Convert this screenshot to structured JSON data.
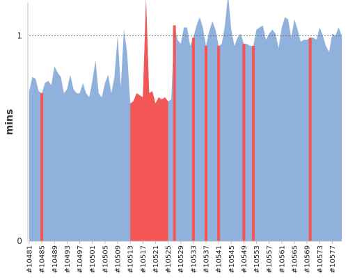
{
  "chart_data": {
    "type": "area",
    "ylabel": "mins",
    "ylim": [
      0,
      1.16
    ],
    "yticks": [
      0,
      1
    ],
    "ytick_labels": [
      "0",
      "1"
    ],
    "reference_line": 1,
    "grid": false,
    "legend": "none",
    "colors": {
      "normal": "#8fb1dc",
      "highlight": "#f25656",
      "axis": "#bbbbbb",
      "refline": "#666666"
    },
    "x_start": 10481,
    "x_end": 10580,
    "x_tick_labels": [
      "#10481",
      "#10485",
      "#10489",
      "#10493",
      "#10497",
      "#10501",
      "#10505",
      "#10509",
      "#10513",
      "#10517",
      "#10521",
      "#10525",
      "#10529",
      "#10533",
      "#10537",
      "#10541",
      "#10545",
      "#10549",
      "#10553",
      "#10557",
      "#10561",
      "#10565",
      "#10569",
      "#10573",
      "#10577"
    ],
    "values": [
      0.73,
      0.8,
      0.79,
      0.73,
      0.72,
      0.77,
      0.78,
      0.76,
      0.85,
      0.82,
      0.8,
      0.72,
      0.74,
      0.81,
      0.74,
      0.72,
      0.72,
      0.77,
      0.72,
      0.7,
      0.78,
      0.88,
      0.72,
      0.7,
      0.77,
      0.81,
      0.72,
      0.8,
      1.0,
      0.75,
      1.03,
      0.92,
      0.67,
      0.68,
      0.72,
      0.71,
      0.7,
      1.18,
      0.72,
      0.73,
      0.67,
      0.7,
      0.69,
      0.7,
      0.68,
      0.69,
      1.05,
      0.98,
      0.96,
      1.04,
      1.04,
      0.95,
      0.99,
      1.05,
      1.09,
      1.04,
      0.95,
      1.02,
      1.07,
      1.03,
      0.95,
      0.96,
      1.05,
      1.2,
      1.03,
      0.95,
      0.99,
      1.01,
      0.96,
      0.96,
      0.95,
      0.95,
      1.03,
      1.04,
      1.05,
      0.98,
      1.01,
      1.03,
      1.01,
      0.94,
      1.04,
      1.09,
      1.08,
      0.99,
      1.08,
      1.03,
      0.97,
      0.98,
      0.98,
      0.99,
      0.99,
      0.98,
      1.04,
      1.0,
      0.95,
      0.92,
      1.01,
      1.0,
      1.04,
      1.0
    ],
    "highlight_ranges": [
      [
        10485,
        10485
      ],
      [
        10513,
        10525
      ],
      [
        10527,
        10527
      ],
      [
        10533,
        10533
      ],
      [
        10537,
        10537
      ],
      [
        10541,
        10541
      ],
      [
        10549,
        10549
      ],
      [
        10552,
        10552
      ],
      [
        10570,
        10570
      ]
    ]
  }
}
